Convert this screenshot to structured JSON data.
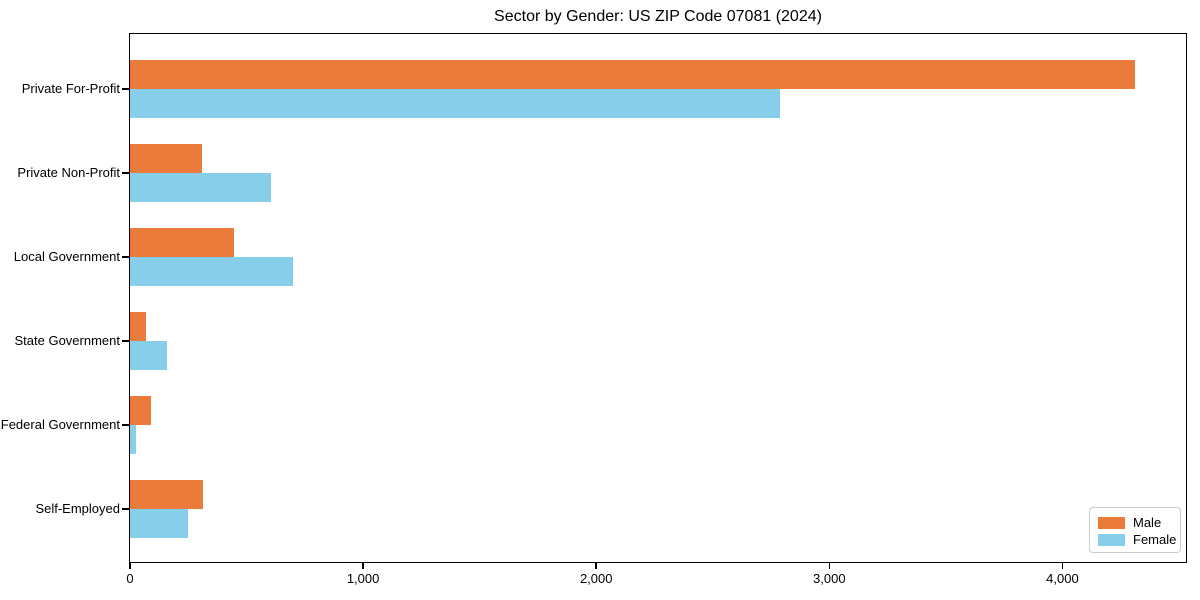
{
  "title": "Sector by Gender: US ZIP Code 07081 (2024)",
  "chart_data": {
    "type": "bar",
    "orientation": "horizontal",
    "title": "Sector by Gender: US ZIP Code 07081 (2024)",
    "categories": [
      "Private For-Profit",
      "Private Non-Profit",
      "Local Government",
      "State Government",
      "Federal Government",
      "Self-Employed"
    ],
    "series": [
      {
        "name": "Male",
        "color": "#EA7B3B",
        "values": [
          4310,
          310,
          446,
          69,
          90,
          313
        ]
      },
      {
        "name": "Female",
        "color": "#87CEEB",
        "values": [
          2787,
          604,
          699,
          159,
          26,
          249
        ]
      }
    ],
    "xlabel": "",
    "ylabel": "",
    "xlim": [
      0,
      4530
    ],
    "x_ticks": [
      0,
      1000,
      2000,
      3000,
      4000
    ],
    "x_tick_labels": [
      "0",
      "1,000",
      "2,000",
      "3,000",
      "4,000"
    ],
    "grid": false,
    "legend_position": "lower right",
    "axis_color": "#000000",
    "background_color": "#ffffff"
  }
}
